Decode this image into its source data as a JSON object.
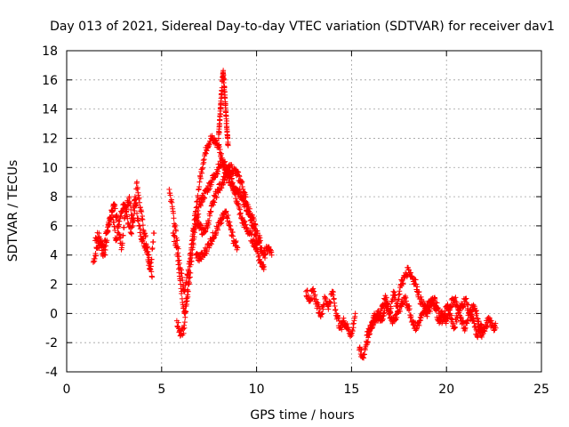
{
  "chart_data": {
    "type": "scatter",
    "title": "Day 013 of 2021, Sidereal Day-to-day VTEC variation (SDTVAR) for receiver dav1",
    "xlabel": "GPS time / hours",
    "ylabel": "SDTVAR / TECUs",
    "xlim": [
      0,
      25
    ],
    "ylim": [
      -4,
      18
    ],
    "xticks": [
      0,
      5,
      10,
      15,
      20,
      25
    ],
    "yticks": [
      -4,
      -2,
      0,
      2,
      4,
      6,
      8,
      10,
      12,
      14,
      16,
      18
    ],
    "grid": true,
    "marker": "+",
    "color": "#ff0000",
    "series": [
      {
        "name": "SDTVAR",
        "segments": [
          {
            "x": [
              1.4,
              1.6,
              1.8,
              2.0,
              2.2,
              2.4,
              2.6,
              2.8,
              3.0,
              3.2,
              3.4,
              3.6,
              3.8,
              4.0,
              4.2,
              4.4,
              4.6
            ],
            "y": [
              3.5,
              4.5,
              5.0,
              4.0,
              6.0,
              7.0,
              5.0,
              6.5,
              7.5,
              6.5,
              5.5,
              8.0,
              6.0,
              5.0,
              4.5,
              3.0,
              5.5
            ]
          },
          {
            "x": [
              1.5,
              1.7,
              1.9,
              2.1,
              2.3,
              2.5,
              2.7,
              2.9,
              3.1,
              3.3,
              3.5,
              3.7,
              3.9,
              4.1,
              4.3,
              4.5
            ],
            "y": [
              5.0,
              5.5,
              4.0,
              5.5,
              6.5,
              7.5,
              6.0,
              4.5,
              7.0,
              8.0,
              6.0,
              9.0,
              7.0,
              5.5,
              4.0,
              2.5
            ]
          },
          {
            "x": [
              5.4,
              5.6,
              5.8,
              6.0,
              6.2,
              6.4,
              6.6,
              6.8,
              7.0,
              7.2,
              7.4,
              7.6,
              7.8,
              8.0,
              8.2,
              8.4,
              8.6,
              8.8,
              9.0,
              9.2,
              9.4,
              9.6,
              9.8,
              10.0,
              10.2,
              10.4,
              10.6,
              10.8
            ],
            "y": [
              8.5,
              7.0,
              5.0,
              3.0,
              1.5,
              3.0,
              5.0,
              7.0,
              9.0,
              10.5,
              11.5,
              12.0,
              11.8,
              11.5,
              10.5,
              9.5,
              9.0,
              8.5,
              8.5,
              8.0,
              7.5,
              7.0,
              6.0,
              5.0,
              4.5,
              4.0,
              4.5,
              4.0
            ]
          },
          {
            "x": [
              5.6,
              5.8,
              6.0,
              6.2,
              6.4,
              6.6,
              6.8,
              7.0,
              7.2,
              7.4,
              7.6,
              7.8,
              8.0,
              8.2,
              8.4,
              8.6,
              8.8,
              9.0,
              9.2,
              9.4,
              9.6,
              9.8,
              10.0,
              10.2,
              10.4
            ],
            "y": [
              5.5,
              4.5,
              2.0,
              0.0,
              1.5,
              4.0,
              6.0,
              7.5,
              8.0,
              8.5,
              9.0,
              9.5,
              10.0,
              10.5,
              10.0,
              9.5,
              8.5,
              7.5,
              6.5,
              6.0,
              5.5,
              5.0,
              4.5,
              3.5,
              3.2
            ]
          },
          {
            "x": [
              5.8,
              6.0,
              6.2,
              6.4,
              6.6,
              6.8,
              7.0,
              7.2,
              7.4,
              7.6,
              7.8,
              8.0,
              8.2,
              8.4,
              8.6,
              8.8,
              9.0,
              9.2,
              9.4,
              9.6,
              9.8,
              10.0,
              10.2
            ],
            "y": [
              -0.5,
              -1.5,
              -1.0,
              2.0,
              5.0,
              6.5,
              6.0,
              5.5,
              6.0,
              7.0,
              8.0,
              8.5,
              9.0,
              9.5,
              10.0,
              9.8,
              9.5,
              9.0,
              8.0,
              7.0,
              6.5,
              5.5,
              5.0
            ]
          },
          {
            "x": [
              6.8,
              7.0,
              7.2,
              7.4,
              7.6,
              7.8,
              8.0,
              8.2,
              8.4,
              8.6,
              8.8,
              9.0
            ],
            "y": [
              4.0,
              3.8,
              4.0,
              4.5,
              5.0,
              5.5,
              6.0,
              6.5,
              7.0,
              6.0,
              5.0,
              4.5
            ]
          },
          {
            "x": [
              8.0,
              8.05,
              8.1,
              8.15,
              8.2,
              8.25,
              8.3,
              8.35,
              8.4,
              8.45,
              8.5
            ],
            "y": [
              12.0,
              13.0,
              14.0,
              15.0,
              16.0,
              16.4,
              15.5,
              14.5,
              13.5,
              12.5,
              11.5
            ]
          },
          {
            "x": [
              12.6,
              12.8,
              13.0,
              13.2,
              13.4,
              13.6,
              13.8,
              14.0,
              14.2,
              14.4,
              14.6,
              14.8,
              15.0,
              15.2
            ],
            "y": [
              1.5,
              1.0,
              1.5,
              0.5,
              0.0,
              1.0,
              0.5,
              1.5,
              0.0,
              -1.0,
              -0.5,
              -1.0,
              -1.5,
              0.0
            ]
          },
          {
            "x": [
              15.4,
              15.6,
              15.8,
              16.0,
              16.2,
              16.4,
              16.6,
              16.8,
              17.0,
              17.2,
              17.4,
              17.6,
              17.8,
              18.0,
              18.2,
              18.4,
              18.6,
              18.8,
              19.0,
              19.2,
              19.4,
              19.6,
              19.8,
              20.0,
              20.2,
              20.4,
              20.6,
              20.8,
              21.0,
              21.2,
              21.4,
              21.6,
              21.8,
              22.0,
              22.2,
              22.4,
              22.6
            ],
            "y": [
              -2.5,
              -3.0,
              -2.0,
              -1.0,
              0.0,
              -0.5,
              0.5,
              1.0,
              0.0,
              1.5,
              0.5,
              2.0,
              2.5,
              3.0,
              2.5,
              2.0,
              1.0,
              0.5,
              0.0,
              0.5,
              1.0,
              0.0,
              -0.5,
              0.5,
              0.0,
              -1.0,
              0.0,
              0.5,
              1.0,
              0.0,
              -0.5,
              -1.5,
              -1.0,
              -1.0,
              -0.5,
              -0.8,
              -1.0
            ]
          },
          {
            "x": [
              15.8,
              16.0,
              16.2,
              16.4,
              16.6,
              16.8,
              17.0,
              17.2,
              17.4,
              17.6,
              17.8,
              18.0,
              18.2,
              18.4,
              18.6,
              18.8,
              19.0,
              19.2,
              19.4,
              19.6,
              19.8,
              20.0,
              20.2,
              20.4,
              20.6,
              20.8,
              21.0,
              21.2,
              21.4,
              21.6,
              21.8,
              22.0
            ],
            "y": [
              -1.5,
              -1.0,
              -0.5,
              0.0,
              -0.5,
              0.5,
              0.0,
              -0.5,
              0.0,
              0.5,
              1.0,
              0.5,
              -0.5,
              -1.0,
              -0.5,
              0.0,
              0.5,
              1.0,
              0.5,
              -0.5,
              0.0,
              -0.5,
              0.5,
              1.0,
              0.5,
              -0.5,
              -1.0,
              0.0,
              0.5,
              0.0,
              -1.5,
              -1.0
            ]
          }
        ]
      }
    ]
  }
}
